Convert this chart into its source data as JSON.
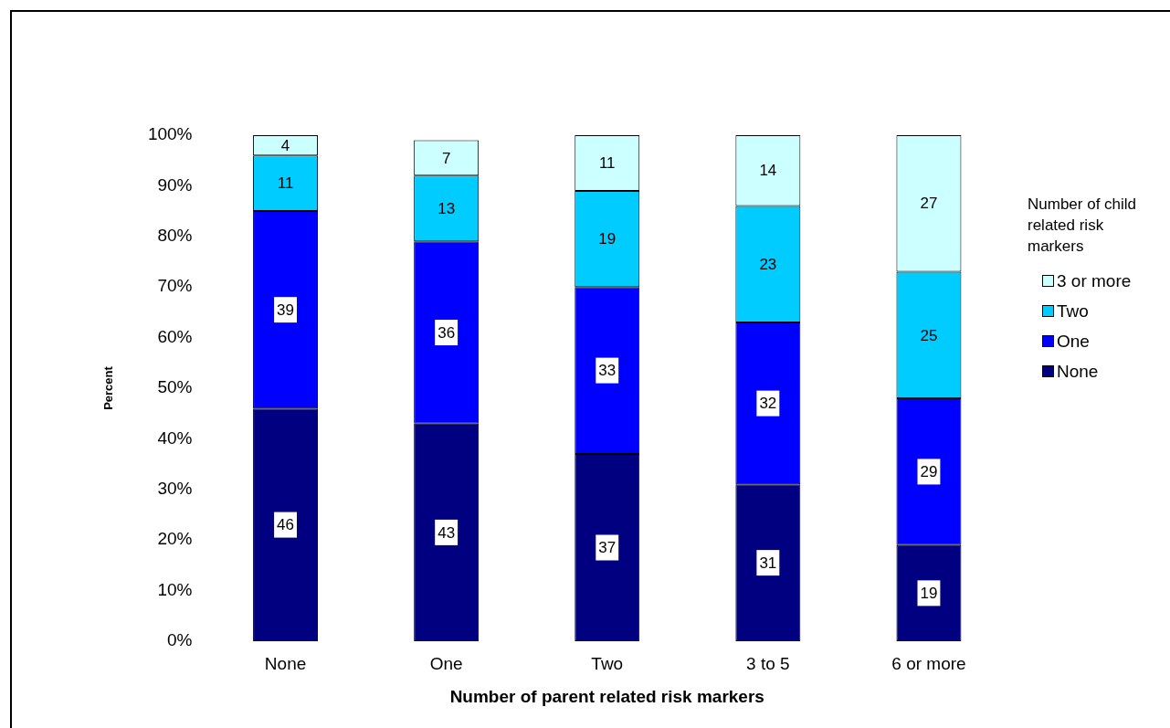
{
  "chart_data": {
    "type": "bar",
    "stacked": true,
    "xlabel": "Number of parent related risk markers",
    "ylabel": "Percent",
    "legend_title": "Number of child related risk markers",
    "legend": "right",
    "data_labels": true,
    "categories": [
      "None",
      "One",
      "Two",
      "3 to 5",
      "6 or more"
    ],
    "series": [
      {
        "name": "None",
        "color": "#000080",
        "values": [
          46,
          43,
          37,
          31,
          19
        ]
      },
      {
        "name": "One",
        "color": "#0000ff",
        "values": [
          39,
          36,
          33,
          32,
          29
        ]
      },
      {
        "name": "Two",
        "color": "#00ccff",
        "values": [
          11,
          13,
          19,
          23,
          25
        ]
      },
      {
        "name": "3 or more",
        "color": "#ccffff",
        "values": [
          4,
          7,
          11,
          14,
          27
        ]
      }
    ],
    "ylim": [
      0,
      100
    ],
    "yticks": [
      {
        "value": 0,
        "label": "0%"
      },
      {
        "value": 10,
        "label": "10%"
      },
      {
        "value": 20,
        "label": "20%"
      },
      {
        "value": 30,
        "label": "30%"
      },
      {
        "value": 40,
        "label": "40%"
      },
      {
        "value": 50,
        "label": "50%"
      },
      {
        "value": 60,
        "label": "60%"
      },
      {
        "value": 70,
        "label": "70%"
      },
      {
        "value": 80,
        "label": "80%"
      },
      {
        "value": 90,
        "label": "90%"
      },
      {
        "value": 100,
        "label": "100%"
      }
    ]
  }
}
